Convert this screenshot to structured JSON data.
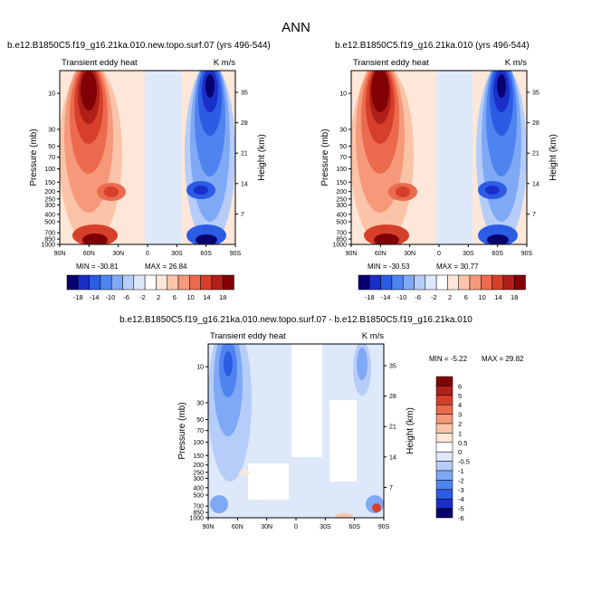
{
  "figure_title": "ANN",
  "colors": {
    "palette": [
      "#08006e",
      "#1a2fc8",
      "#2c5be4",
      "#4f84f0",
      "#7fa9f5",
      "#b5cdf8",
      "#dde8fb",
      "#ffffff",
      "#fde7d8",
      "#fbc4a8",
      "#f5997a",
      "#ec6a4e",
      "#d6402a",
      "#b0201a",
      "#800006"
    ]
  },
  "chart_data": [
    {
      "type": "heatmap",
      "title": "b.e12.B1850C5.f19_g16.21ka.010.new.topo.surf.07 (yrs 496-544)",
      "left_label": "Transient eddy heat",
      "right_label": "K m/s",
      "ylabel": "Pressure (mb)",
      "y2label": "Height (km)",
      "x_ticks": [
        "90N",
        "60N",
        "30N",
        "0",
        "30S",
        "60S",
        "90S"
      ],
      "y_ticks": [
        "10",
        "30",
        "50",
        "70",
        "100",
        "150",
        "200",
        "250",
        "300",
        "400",
        "500",
        "700",
        "850",
        "1000"
      ],
      "y2_ticks": [
        "35",
        "28",
        "21",
        "14",
        "7"
      ],
      "min_label": "MIN = -30.81",
      "max_label": "MAX =  26.84",
      "colorbar_labels": [
        "-18",
        "-14",
        "-10",
        "-6",
        "-2",
        "2",
        "6",
        "10",
        "14",
        "18"
      ]
    },
    {
      "type": "heatmap",
      "title": "b.e12.B1850C5.f19_g16.21ka.010 (yrs 496-544)",
      "left_label": "Transient eddy heat",
      "right_label": "K m/s",
      "ylabel": "Pressure (mb)",
      "y2label": "Height (km)",
      "x_ticks": [
        "90N",
        "60N",
        "30N",
        "0",
        "30S",
        "60S",
        "90S"
      ],
      "y_ticks": [
        "10",
        "30",
        "50",
        "70",
        "100",
        "150",
        "200",
        "250",
        "300",
        "400",
        "500",
        "700",
        "850",
        "1000"
      ],
      "y2_ticks": [
        "35",
        "28",
        "21",
        "14",
        "7"
      ],
      "min_label": "MIN = -30.53",
      "max_label": "MAX =  30.77",
      "colorbar_labels": [
        "-18",
        "-14",
        "-10",
        "-6",
        "-2",
        "2",
        "6",
        "10",
        "14",
        "18"
      ]
    },
    {
      "type": "heatmap",
      "title": "b.e12.B1850C5.f19_g16.21ka.010.new.topo.surf.07 - b.e12.B1850C5.f19_g16.21ka.010",
      "left_label": "Transient eddy heat",
      "right_label": "K m/s",
      "ylabel": "Pressure (mb)",
      "y2label": "Height (km)",
      "x_ticks": [
        "90N",
        "60N",
        "30N",
        "0",
        "30S",
        "60S",
        "90S"
      ],
      "y_ticks": [
        "10",
        "30",
        "50",
        "70",
        "100",
        "150",
        "200",
        "250",
        "300",
        "400",
        "500",
        "700",
        "850",
        "1000"
      ],
      "y2_ticks": [
        "35",
        "28",
        "21",
        "14",
        "7"
      ],
      "min_label": "MIN =  -5.22",
      "max_label": "MAX = 29.82",
      "colorbar_labels": [
        "6",
        "5",
        "4",
        "3",
        "2",
        "1",
        "0.5",
        "0",
        "-0.5",
        "-1",
        "-2",
        "-3",
        "-4",
        "-5",
        "-6"
      ]
    }
  ]
}
